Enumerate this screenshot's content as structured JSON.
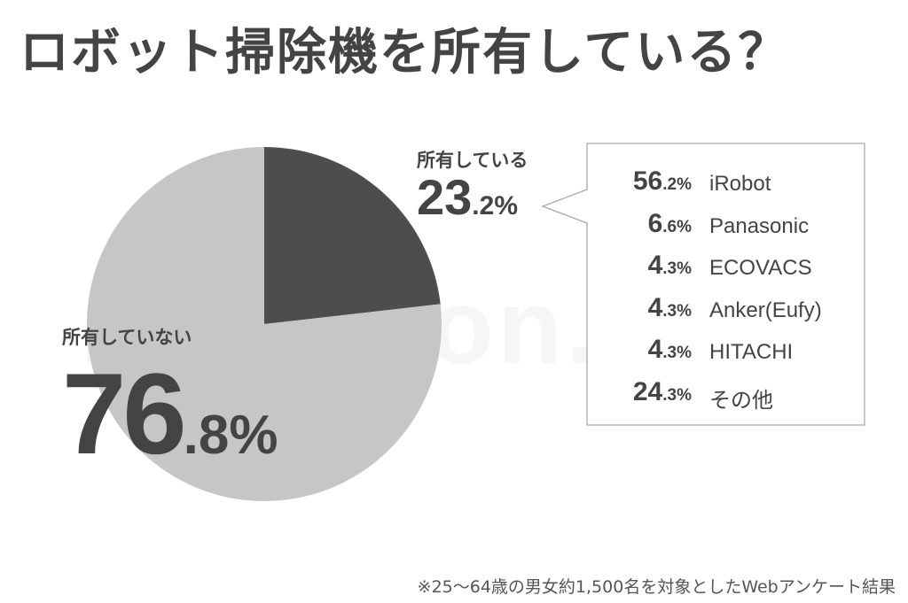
{
  "title": "ロボット掃除機を所有している？",
  "watermark": "makkyon.com",
  "not_owned": {
    "label": "所有していない",
    "value_int": "76",
    "value_dec": ".8%"
  },
  "owned": {
    "label": "所有している",
    "value_int": "23",
    "value_dec": ".2%"
  },
  "brands": [
    {
      "int": "56",
      "dec": ".2%",
      "name": "iRobot"
    },
    {
      "int": "6",
      "dec": ".6%",
      "name": "Panasonic"
    },
    {
      "int": "4",
      "dec": ".3%",
      "name": "ECOVACS"
    },
    {
      "int": "4",
      "dec": ".3%",
      "name": "Anker(Eufy)"
    },
    {
      "int": "4",
      "dec": ".3%",
      "name": "HITACHI"
    },
    {
      "int": "24",
      "dec": ".3%",
      "name": "その他"
    }
  ],
  "footnote": "※25〜64歳の男女約1,500名を対象としたWebアンケート結果",
  "colors": {
    "owned": "#4d4d4d",
    "not_owned": "#c6c6c6",
    "text": "#444444",
    "callout_border": "#aaaaaa"
  },
  "chart_data": [
    {
      "type": "pie",
      "title": "ロボット掃除機を所有している？",
      "categories": [
        "所有している",
        "所有していない"
      ],
      "values": [
        23.2,
        76.8
      ],
      "unit": "%"
    },
    {
      "type": "table",
      "categories": [
        "iRobot",
        "Panasonic",
        "ECOVACS",
        "Anker(Eufy)",
        "HITACHI",
        "その他"
      ],
      "values": [
        56.2,
        6.6,
        4.3,
        4.3,
        4.3,
        24.3
      ],
      "unit": "%"
    }
  ]
}
